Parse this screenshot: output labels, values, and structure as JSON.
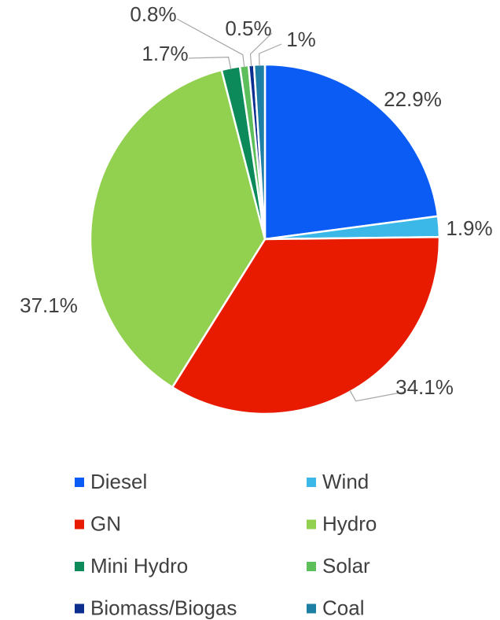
{
  "chart_data": {
    "type": "pie",
    "categories": [
      "Diesel",
      "Wind",
      "GN",
      "Hydro",
      "Mini Hydro",
      "Solar",
      "Biomass/Biogas",
      "Coal"
    ],
    "values": [
      22.9,
      1.9,
      34.1,
      37.1,
      1.7,
      0.8,
      0.5,
      1
    ],
    "value_labels": [
      "22.9%",
      "1.9%",
      "34.1%",
      "37.1%",
      "1.7%",
      "0.8%",
      "0.5%",
      "1%"
    ],
    "colors": [
      "#0a5cf5",
      "#3bb8e8",
      "#e81b00",
      "#92d050",
      "#0c8a5a",
      "#5cbf5c",
      "#0b2e8f",
      "#1d7fa3"
    ],
    "legend": "bottom"
  }
}
